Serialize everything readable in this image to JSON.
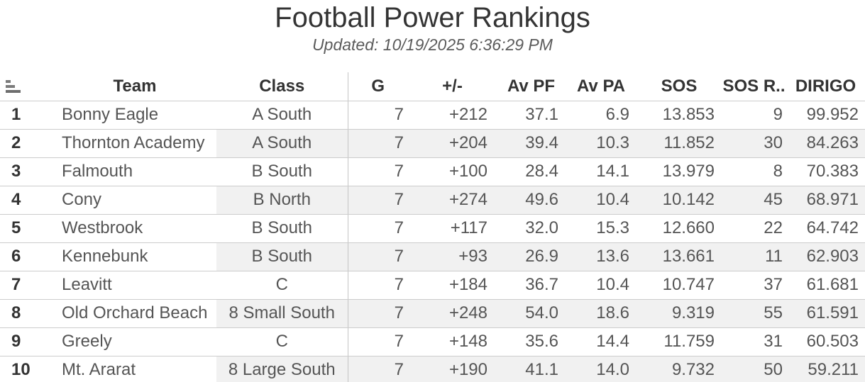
{
  "chart_data": {
    "type": "table",
    "title": "Football Power Rankings",
    "subtitle": "Updated: 10/19/2025 6:36:29 PM",
    "columns": [
      {
        "key": "rank",
        "label": ""
      },
      {
        "key": "team",
        "label": "Team"
      },
      {
        "key": "class",
        "label": "Class"
      },
      {
        "key": "g",
        "label": "G"
      },
      {
        "key": "pm",
        "label": "+/-"
      },
      {
        "key": "avpf",
        "label": "Av PF"
      },
      {
        "key": "avpa",
        "label": "Av PA"
      },
      {
        "key": "sos",
        "label": "SOS"
      },
      {
        "key": "sosr",
        "label": "SOS R.."
      },
      {
        "key": "dirigo",
        "label": "DIRIGO"
      }
    ],
    "rows": [
      {
        "rank": "1",
        "team": "Bonny Eagle",
        "class": "A South",
        "g": "7",
        "pm": "+212",
        "avpf": "37.1",
        "avpa": "6.9",
        "sos": "13.853",
        "sosr": "9",
        "dirigo": "99.952"
      },
      {
        "rank": "2",
        "team": "Thornton Academy",
        "class": "A South",
        "g": "7",
        "pm": "+204",
        "avpf": "39.4",
        "avpa": "10.3",
        "sos": "11.852",
        "sosr": "30",
        "dirigo": "84.263"
      },
      {
        "rank": "3",
        "team": "Falmouth",
        "class": "B South",
        "g": "7",
        "pm": "+100",
        "avpf": "28.4",
        "avpa": "14.1",
        "sos": "13.979",
        "sosr": "8",
        "dirigo": "70.383"
      },
      {
        "rank": "4",
        "team": "Cony",
        "class": "B North",
        "g": "7",
        "pm": "+274",
        "avpf": "49.6",
        "avpa": "10.4",
        "sos": "10.142",
        "sosr": "45",
        "dirigo": "68.971"
      },
      {
        "rank": "5",
        "team": "Westbrook",
        "class": "B South",
        "g": "7",
        "pm": "+117",
        "avpf": "32.0",
        "avpa": "15.3",
        "sos": "12.660",
        "sosr": "22",
        "dirigo": "64.742"
      },
      {
        "rank": "6",
        "team": "Kennebunk",
        "class": "B South",
        "g": "7",
        "pm": "+93",
        "avpf": "26.9",
        "avpa": "13.6",
        "sos": "13.661",
        "sosr": "11",
        "dirigo": "62.903"
      },
      {
        "rank": "7",
        "team": "Leavitt",
        "class": "C",
        "g": "7",
        "pm": "+184",
        "avpf": "36.7",
        "avpa": "10.4",
        "sos": "10.747",
        "sosr": "37",
        "dirigo": "61.681"
      },
      {
        "rank": "8",
        "team": "Old Orchard Beach",
        "class": "8 Small South",
        "g": "7",
        "pm": "+248",
        "avpf": "54.0",
        "avpa": "18.6",
        "sos": "9.319",
        "sosr": "55",
        "dirigo": "61.591"
      },
      {
        "rank": "9",
        "team": "Greely",
        "class": "C",
        "g": "7",
        "pm": "+148",
        "avpf": "35.6",
        "avpa": "14.4",
        "sos": "11.759",
        "sosr": "31",
        "dirigo": "60.503"
      },
      {
        "rank": "10",
        "team": "Mt. Ararat",
        "class": "8 Large South",
        "g": "7",
        "pm": "+190",
        "avpf": "41.1",
        "avpa": "14.0",
        "sos": "9.732",
        "sosr": "50",
        "dirigo": "59.211"
      }
    ]
  },
  "icons": {
    "rank_header": "sort-ascending-icon"
  },
  "colors": {
    "title_text": "#343434",
    "subtitle_text": "#5b5b5b",
    "header_text": "#333333",
    "body_text": "#555555",
    "row_band": "#f1f1f1",
    "gridline": "#cccccc",
    "column_divider": "#c4c4c4",
    "sort_icon": "#7b7b7b"
  }
}
